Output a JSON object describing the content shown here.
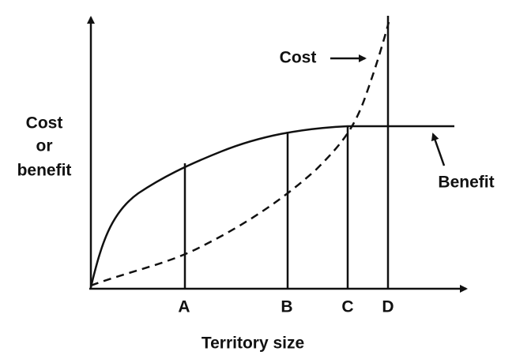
{
  "axes": {
    "y_label": [
      "Cost",
      "or",
      "benefit"
    ],
    "x_label": "Territory size"
  },
  "markers": [
    "A",
    "B",
    "C",
    "D"
  ],
  "curves": {
    "cost": "Cost",
    "benefit": "Benefit"
  }
}
